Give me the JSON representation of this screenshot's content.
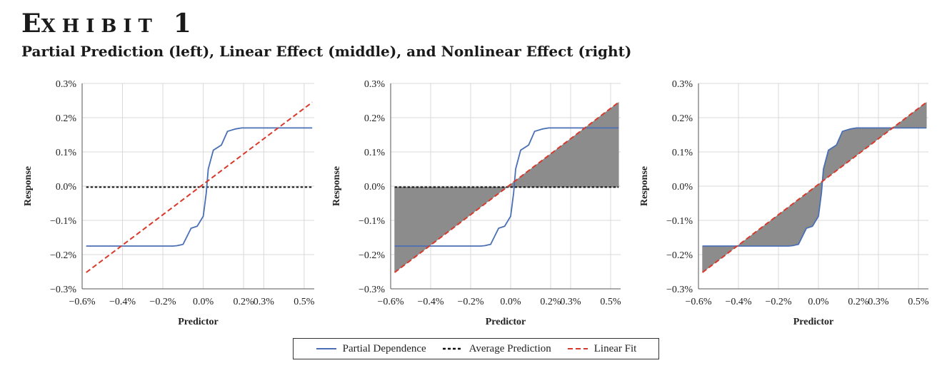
{
  "header": {
    "exhibit_label": "Exhibit 1",
    "subtitle": "Partial Prediction (left), Linear Effect (middle), and Nonlinear Effect (right)"
  },
  "colors": {
    "partial_dependence": "#4a6fb5",
    "average_prediction": "#111111",
    "linear_fit": "#d9392b",
    "shade": "#8c8c8c",
    "grid": "#d9d9d9"
  },
  "legend": {
    "items": [
      {
        "label": "Partial Dependence",
        "style": "solid",
        "color": "#4a6fb5"
      },
      {
        "label": "Average Prediction",
        "style": "dotted",
        "color": "#111111"
      },
      {
        "label": "Linear Fit",
        "style": "dashed",
        "color": "#d9392b"
      }
    ]
  },
  "chart_data": [
    {
      "type": "line",
      "panel": "left",
      "xlabel": "Predictor",
      "ylabel": "Response",
      "xlim": [
        -0.6,
        0.55
      ],
      "ylim": [
        -0.3,
        0.3
      ],
      "x_ticks": [
        -0.6,
        -0.4,
        -0.2,
        0.0,
        0.2,
        0.3,
        0.5
      ],
      "x_tick_labels": [
        "−0.6%",
        "−0.4%",
        "−0.2%",
        "0.0%",
        "0.2%",
        "0.3%",
        "0.5%"
      ],
      "y_ticks": [
        -0.3,
        -0.2,
        -0.1,
        0.0,
        0.1,
        0.2,
        0.3
      ],
      "y_tick_labels": [
        "−0.3%",
        "−0.2%",
        "−0.1%",
        "0.0%",
        "0.1%",
        "0.2%",
        "0.3%"
      ],
      "grid": true,
      "shading": "none",
      "series": [
        {
          "name": "Partial Dependence",
          "x": [
            -0.58,
            -0.3,
            -0.2,
            -0.15,
            -0.13,
            -0.1,
            -0.06,
            -0.03,
            0.0,
            0.015,
            0.025,
            0.05,
            0.09,
            0.12,
            0.16,
            0.19,
            0.22,
            0.3,
            0.4,
            0.5,
            0.54
          ],
          "y": [
            -0.175,
            -0.175,
            -0.175,
            -0.175,
            -0.174,
            -0.17,
            -0.123,
            -0.117,
            -0.088,
            -0.02,
            0.05,
            0.105,
            0.12,
            0.16,
            0.167,
            0.17,
            0.17,
            0.17,
            0.17,
            0.17,
            0.17
          ]
        },
        {
          "name": "Average Prediction",
          "x": [
            -0.58,
            0.54
          ],
          "y": [
            -0.003,
            -0.003
          ]
        },
        {
          "name": "Linear Fit",
          "x": [
            -0.58,
            0.54
          ],
          "y": [
            -0.252,
            0.245
          ]
        }
      ]
    },
    {
      "type": "line",
      "panel": "middle",
      "xlabel": "Predictor",
      "ylabel": "Response",
      "xlim": [
        -0.6,
        0.55
      ],
      "ylim": [
        -0.3,
        0.3
      ],
      "x_ticks": [
        -0.6,
        -0.4,
        -0.2,
        0.0,
        0.2,
        0.3,
        0.5
      ],
      "x_tick_labels": [
        "−0.6%",
        "−0.4%",
        "−0.2%",
        "0.0%",
        "0.2%",
        "0.3%",
        "0.5%"
      ],
      "y_ticks": [
        -0.3,
        -0.2,
        -0.1,
        0.0,
        0.1,
        0.2,
        0.3
      ],
      "y_tick_labels": [
        "−0.3%",
        "−0.2%",
        "−0.1%",
        "0.0%",
        "0.1%",
        "0.2%",
        "0.3%"
      ],
      "grid": true,
      "shading": "between Linear Fit and Average Prediction",
      "series": [
        {
          "name": "Partial Dependence",
          "x": [
            -0.58,
            -0.3,
            -0.2,
            -0.15,
            -0.13,
            -0.1,
            -0.06,
            -0.03,
            0.0,
            0.015,
            0.025,
            0.05,
            0.09,
            0.12,
            0.16,
            0.19,
            0.22,
            0.3,
            0.4,
            0.5,
            0.54
          ],
          "y": [
            -0.175,
            -0.175,
            -0.175,
            -0.175,
            -0.174,
            -0.17,
            -0.123,
            -0.117,
            -0.088,
            -0.02,
            0.05,
            0.105,
            0.12,
            0.16,
            0.167,
            0.17,
            0.17,
            0.17,
            0.17,
            0.17,
            0.17
          ]
        },
        {
          "name": "Average Prediction",
          "x": [
            -0.58,
            0.54
          ],
          "y": [
            -0.003,
            -0.003
          ]
        },
        {
          "name": "Linear Fit",
          "x": [
            -0.58,
            0.54
          ],
          "y": [
            -0.252,
            0.245
          ]
        }
      ]
    },
    {
      "type": "line",
      "panel": "right",
      "xlabel": "Predictor",
      "ylabel": "Response",
      "xlim": [
        -0.6,
        0.55
      ],
      "ylim": [
        -0.3,
        0.3
      ],
      "x_ticks": [
        -0.6,
        -0.4,
        -0.2,
        0.0,
        0.2,
        0.3,
        0.5
      ],
      "x_tick_labels": [
        "−0.6%",
        "−0.4%",
        "−0.2%",
        "0.0%",
        "0.2%",
        "0.3%",
        "0.5%"
      ],
      "y_ticks": [
        -0.3,
        -0.2,
        -0.1,
        0.0,
        0.1,
        0.2,
        0.3
      ],
      "y_tick_labels": [
        "−0.3%",
        "−0.2%",
        "−0.1%",
        "0.0%",
        "0.1%",
        "0.2%",
        "0.3%"
      ],
      "grid": true,
      "shading": "between Partial Dependence and Linear Fit",
      "series": [
        {
          "name": "Partial Dependence",
          "x": [
            -0.58,
            -0.3,
            -0.2,
            -0.15,
            -0.13,
            -0.1,
            -0.06,
            -0.03,
            0.0,
            0.015,
            0.025,
            0.05,
            0.09,
            0.12,
            0.16,
            0.19,
            0.22,
            0.3,
            0.4,
            0.5,
            0.54
          ],
          "y": [
            -0.175,
            -0.175,
            -0.175,
            -0.175,
            -0.174,
            -0.17,
            -0.123,
            -0.117,
            -0.088,
            -0.02,
            0.05,
            0.105,
            0.12,
            0.16,
            0.167,
            0.17,
            0.17,
            0.17,
            0.17,
            0.17,
            0.17
          ]
        },
        {
          "name": "Linear Fit",
          "x": [
            -0.58,
            0.54
          ],
          "y": [
            -0.252,
            0.245
          ]
        }
      ]
    }
  ]
}
